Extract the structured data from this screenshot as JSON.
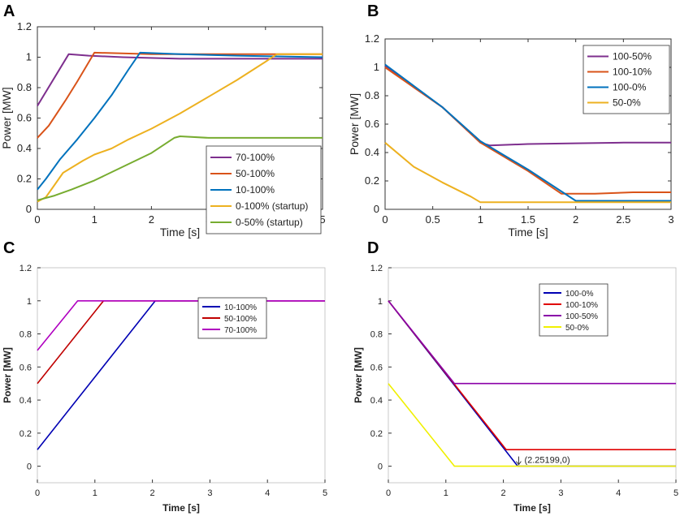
{
  "chart_data": [
    {
      "id": "A",
      "type": "line",
      "panel_label": "A",
      "xlabel": "Time [s]",
      "ylabel": "Power [MW]",
      "xlim": [
        0,
        5
      ],
      "ylim": [
        0,
        1.2
      ],
      "xticks": [
        0,
        1,
        2,
        3,
        4,
        5
      ],
      "yticks": [
        0,
        0.2,
        0.4,
        0.6,
        0.8,
        1,
        1.2
      ],
      "legend_position": "bottom-right",
      "series": [
        {
          "name": "70-100%",
          "color": "#7e2f8e",
          "points": [
            [
              0,
              0.68
            ],
            [
              0.55,
              1.02
            ],
            [
              0.9,
              1.01
            ],
            [
              1.5,
              1.0
            ],
            [
              2.5,
              0.99
            ],
            [
              3.5,
              0.99
            ],
            [
              5,
              0.99
            ]
          ]
        },
        {
          "name": "50-100%",
          "color": "#d95319",
          "points": [
            [
              0,
              0.47
            ],
            [
              0.2,
              0.55
            ],
            [
              0.5,
              0.72
            ],
            [
              0.7,
              0.84
            ],
            [
              1.0,
              1.03
            ],
            [
              2,
              1.02
            ],
            [
              3,
              1.02
            ],
            [
              5,
              1.02
            ]
          ]
        },
        {
          "name": "10-100%",
          "color": "#0072bd",
          "points": [
            [
              0,
              0.13
            ],
            [
              0.15,
              0.2
            ],
            [
              0.4,
              0.33
            ],
            [
              0.7,
              0.46
            ],
            [
              1.0,
              0.6
            ],
            [
              1.3,
              0.75
            ],
            [
              1.6,
              0.92
            ],
            [
              1.8,
              1.03
            ],
            [
              2.5,
              1.02
            ],
            [
              3.5,
              1.01
            ],
            [
              5,
              1.0
            ]
          ]
        },
        {
          "name": "0-100% (startup)",
          "color": "#edb120",
          "points": [
            [
              0,
              0.05
            ],
            [
              0.15,
              0.08
            ],
            [
              0.3,
              0.16
            ],
            [
              0.45,
              0.24
            ],
            [
              0.8,
              0.32
            ],
            [
              1.0,
              0.36
            ],
            [
              1.3,
              0.4
            ],
            [
              1.6,
              0.46
            ],
            [
              2,
              0.53
            ],
            [
              2.5,
              0.63
            ],
            [
              3,
              0.74
            ],
            [
              3.5,
              0.85
            ],
            [
              4,
              0.97
            ],
            [
              4.2,
              1.02
            ],
            [
              5,
              1.02
            ]
          ]
        },
        {
          "name": "0-50% (startup)",
          "color": "#77ac30",
          "points": [
            [
              0,
              0.06
            ],
            [
              0.3,
              0.09
            ],
            [
              0.6,
              0.13
            ],
            [
              1.0,
              0.19
            ],
            [
              1.5,
              0.28
            ],
            [
              2.0,
              0.37
            ],
            [
              2.4,
              0.47
            ],
            [
              2.5,
              0.48
            ],
            [
              3,
              0.47
            ],
            [
              4,
              0.47
            ],
            [
              5,
              0.47
            ]
          ]
        }
      ]
    },
    {
      "id": "B",
      "type": "line",
      "panel_label": "B",
      "xlabel": "Time [s]",
      "ylabel": "Power [MW]",
      "xlim": [
        0,
        3
      ],
      "ylim": [
        0,
        1.2
      ],
      "xticks": [
        0,
        0.5,
        1,
        1.5,
        2,
        2.5,
        3
      ],
      "yticks": [
        0,
        0.2,
        0.4,
        0.6,
        0.8,
        1,
        1.2
      ],
      "legend_position": "top-right",
      "series": [
        {
          "name": "100-50%",
          "color": "#7e2f8e",
          "points": [
            [
              0,
              1.01
            ],
            [
              0.3,
              0.86
            ],
            [
              0.6,
              0.72
            ],
            [
              1.0,
              0.47
            ],
            [
              1.1,
              0.45
            ],
            [
              1.5,
              0.46
            ],
            [
              2,
              0.465
            ],
            [
              2.5,
              0.47
            ],
            [
              3,
              0.47
            ]
          ]
        },
        {
          "name": "100-10%",
          "color": "#d95319",
          "points": [
            [
              0,
              1.0
            ],
            [
              0.3,
              0.86
            ],
            [
              0.6,
              0.72
            ],
            [
              1.0,
              0.47
            ],
            [
              1.5,
              0.27
            ],
            [
              1.85,
              0.11
            ],
            [
              2.2,
              0.11
            ],
            [
              2.6,
              0.12
            ],
            [
              3,
              0.12
            ]
          ]
        },
        {
          "name": "100-0%",
          "color": "#0072bd",
          "points": [
            [
              0,
              1.02
            ],
            [
              0.3,
              0.87
            ],
            [
              0.6,
              0.72
            ],
            [
              1.0,
              0.48
            ],
            [
              1.5,
              0.28
            ],
            [
              2.0,
              0.06
            ],
            [
              2.5,
              0.06
            ],
            [
              3,
              0.06
            ]
          ]
        },
        {
          "name": "50-0%",
          "color": "#edb120",
          "points": [
            [
              0,
              0.47
            ],
            [
              0.3,
              0.3
            ],
            [
              0.6,
              0.19
            ],
            [
              0.9,
              0.09
            ],
            [
              1.0,
              0.05
            ],
            [
              1.5,
              0.05
            ],
            [
              2,
              0.05
            ],
            [
              2.5,
              0.05
            ],
            [
              3,
              0.05
            ]
          ]
        }
      ]
    },
    {
      "id": "C",
      "type": "line",
      "panel_label": "C",
      "xlabel": "Time [s]",
      "ylabel": "Power [MW]",
      "xlim": [
        0,
        5
      ],
      "ylim": [
        -0.1,
        1.2
      ],
      "xticks": [
        0,
        1,
        2,
        3,
        4,
        5
      ],
      "yticks": [
        0,
        0.2,
        0.4,
        0.6,
        0.8,
        1,
        1.2
      ],
      "legend_position": "top-right",
      "series": [
        {
          "name": "10-100%",
          "color": "#0000b3",
          "points": [
            [
              0,
              0.1
            ],
            [
              2.05,
              1.0
            ],
            [
              5,
              1.0
            ]
          ]
        },
        {
          "name": "50-100%",
          "color": "#c00000",
          "points": [
            [
              0,
              0.5
            ],
            [
              1.15,
              1.0
            ],
            [
              5,
              1.0
            ]
          ]
        },
        {
          "name": "70-100%",
          "color": "#b000c0",
          "points": [
            [
              0,
              0.7
            ],
            [
              0.7,
              1.0
            ],
            [
              5,
              1.0
            ]
          ]
        }
      ]
    },
    {
      "id": "D",
      "type": "line",
      "panel_label": "D",
      "xlabel": "Time [s]",
      "ylabel": "Power [MW]",
      "xlim": [
        0,
        5
      ],
      "ylim": [
        -0.1,
        1.2
      ],
      "xticks": [
        0,
        1,
        2,
        3,
        4,
        5
      ],
      "yticks": [
        0,
        0.2,
        0.4,
        0.6,
        0.8,
        1,
        1.2
      ],
      "legend_position": "top-center",
      "annotation": {
        "text": "(2.25199,0)",
        "x": 2.25199,
        "y": 0
      },
      "series": [
        {
          "name": "100-0%",
          "color": "#0000b3",
          "points": [
            [
              0,
              1.0
            ],
            [
              2.25,
              0
            ],
            [
              5,
              0
            ]
          ]
        },
        {
          "name": "100-10%",
          "color": "#e00000",
          "points": [
            [
              0,
              1.0
            ],
            [
              2.05,
              0.1
            ],
            [
              5,
              0.1
            ]
          ]
        },
        {
          "name": "100-50%",
          "color": "#8a00a8",
          "points": [
            [
              0,
              1.0
            ],
            [
              1.15,
              0.5
            ],
            [
              5,
              0.5
            ]
          ]
        },
        {
          "name": "50-0%",
          "color": "#f0f000",
          "points": [
            [
              0,
              0.5
            ],
            [
              1.15,
              0
            ],
            [
              5,
              0
            ]
          ]
        }
      ]
    }
  ]
}
